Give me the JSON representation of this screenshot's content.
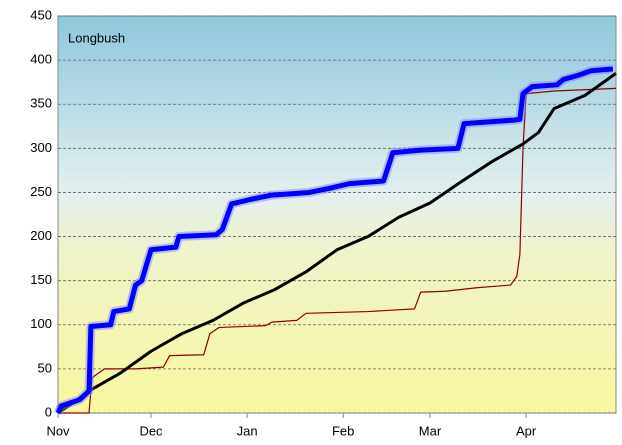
{
  "chart_data": {
    "type": "line",
    "title": "Longbush",
    "xlim": [
      0,
      180
    ],
    "xticks": [
      {
        "value": 0,
        "label": "Nov"
      },
      {
        "value": 30,
        "label": "Dec"
      },
      {
        "value": 61,
        "label": "Jan"
      },
      {
        "value": 92,
        "label": "Feb"
      },
      {
        "value": 120,
        "label": "Mar"
      },
      {
        "value": 151,
        "label": "Apr"
      }
    ],
    "ylim": [
      0,
      450
    ],
    "yticks": [
      0,
      50,
      100,
      150,
      200,
      250,
      300,
      350,
      400,
      450
    ],
    "grid": true,
    "series": [
      {
        "color": "#8b0000",
        "width": 1.2,
        "x": [
          0,
          10,
          11,
          13,
          15,
          25,
          34,
          36,
          47,
          49,
          52,
          67,
          69,
          77,
          80,
          100,
          115,
          117,
          125,
          135,
          146,
          148,
          149,
          150,
          151,
          160,
          180
        ],
        "values": [
          0,
          0,
          40,
          45,
          50,
          50,
          52,
          65,
          66,
          90,
          97,
          99,
          103,
          105,
          113,
          115,
          118,
          137,
          138,
          142,
          145,
          155,
          180,
          300,
          362,
          365,
          368
        ]
      },
      {
        "color": "#000000",
        "width": 3,
        "x": [
          0,
          5,
          10,
          20,
          30,
          40,
          50,
          60,
          70,
          80,
          90,
          100,
          110,
          120,
          130,
          140,
          150,
          155,
          160,
          170,
          180
        ],
        "values": [
          0,
          12,
          25,
          45,
          70,
          90,
          105,
          125,
          140,
          160,
          185,
          200,
          222,
          238,
          262,
          285,
          305,
          318,
          345,
          360,
          385
        ]
      },
      {
        "color": "#0000ff",
        "width": 5,
        "x": [
          0,
          1,
          7,
          10,
          10.6,
          17,
          18,
          23,
          25,
          27,
          30,
          38,
          39,
          51,
          53,
          56,
          62,
          69,
          81,
          88,
          94,
          105,
          108,
          117,
          129,
          131,
          139,
          147,
          149,
          150,
          153,
          161,
          163,
          168,
          172,
          179
        ],
        "values": [
          0,
          8,
          15,
          25,
          98,
          100,
          115,
          118,
          145,
          150,
          185,
          188,
          200,
          202,
          208,
          237,
          242,
          247,
          250,
          255,
          260,
          263,
          295,
          298,
          300,
          328,
          330,
          332,
          333,
          362,
          370,
          372,
          378,
          383,
          388,
          390
        ]
      }
    ]
  }
}
